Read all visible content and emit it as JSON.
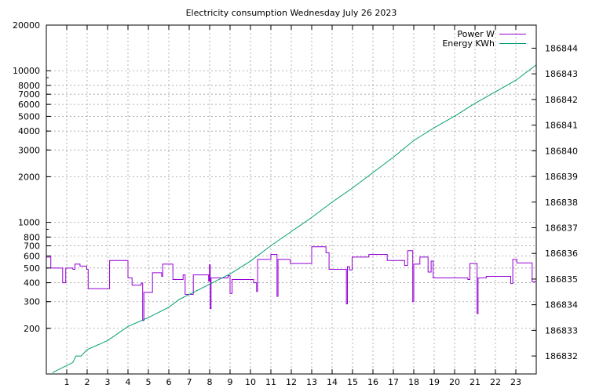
{
  "chart_data": {
    "type": "line",
    "title": "Electricity consumption Wednesday July 26 2023",
    "xlabel": "",
    "ylabel": "",
    "y2label": "",
    "grid": true,
    "legend_position": "top-right",
    "x_ticks": [
      "1",
      "2",
      "3",
      "4",
      "5",
      "6",
      "7",
      "8",
      "9",
      "10",
      "11",
      "12",
      "13",
      "14",
      "15",
      "16",
      "17",
      "18",
      "19",
      "20",
      "21",
      "22",
      "23"
    ],
    "y_axis": {
      "scale": "log",
      "range": [
        100,
        20000
      ],
      "ticks": [
        200,
        300,
        400,
        500,
        600,
        700,
        800,
        1000,
        2000,
        3000,
        4000,
        5000,
        6000,
        7000,
        8000,
        10000,
        20000
      ]
    },
    "y2_axis": {
      "scale": "linear",
      "range": [
        186831.3,
        186844.9
      ],
      "ticks": [
        186832,
        186833,
        186834,
        186835,
        186836,
        186837,
        186838,
        186839,
        186840,
        186841,
        186842,
        186843,
        186844
      ]
    },
    "xlim": [
      0,
      24
    ],
    "series": [
      {
        "name": "Power W",
        "color": "#9400d3",
        "axis": "y",
        "points": [
          [
            0.0,
            590
          ],
          [
            0.22,
            590
          ],
          [
            0.22,
            500
          ],
          [
            0.8,
            500
          ],
          [
            0.8,
            400
          ],
          [
            0.95,
            400
          ],
          [
            0.95,
            500
          ],
          [
            1.3,
            500
          ],
          [
            1.3,
            490
          ],
          [
            1.4,
            490
          ],
          [
            1.4,
            530
          ],
          [
            1.65,
            530
          ],
          [
            1.65,
            515
          ],
          [
            1.98,
            515
          ],
          [
            1.98,
            490
          ],
          [
            2.05,
            490
          ],
          [
            2.05,
            365
          ],
          [
            3.1,
            365
          ],
          [
            3.1,
            560
          ],
          [
            4.0,
            560
          ],
          [
            4.0,
            430
          ],
          [
            4.2,
            430
          ],
          [
            4.2,
            385
          ],
          [
            4.65,
            385
          ],
          [
            4.65,
            398
          ],
          [
            4.72,
            398
          ],
          [
            4.72,
            225
          ],
          [
            4.78,
            225
          ],
          [
            4.78,
            345
          ],
          [
            5.2,
            345
          ],
          [
            5.2,
            465
          ],
          [
            5.65,
            465
          ],
          [
            5.65,
            440
          ],
          [
            5.7,
            440
          ],
          [
            5.7,
            530
          ],
          [
            6.2,
            530
          ],
          [
            6.2,
            420
          ],
          [
            6.7,
            420
          ],
          [
            6.7,
            450
          ],
          [
            6.8,
            450
          ],
          [
            6.8,
            335
          ],
          [
            7.2,
            335
          ],
          [
            7.2,
            450
          ],
          [
            7.95,
            450
          ],
          [
            7.95,
            410
          ],
          [
            7.99,
            410
          ],
          [
            7.99,
            525
          ],
          [
            8.03,
            525
          ],
          [
            8.03,
            270
          ],
          [
            8.07,
            270
          ],
          [
            8.07,
            430
          ],
          [
            8.9,
            430
          ],
          [
            8.9,
            445
          ],
          [
            9.0,
            445
          ],
          [
            9.0,
            340
          ],
          [
            9.1,
            340
          ],
          [
            9.1,
            420
          ],
          [
            10.15,
            420
          ],
          [
            10.15,
            400
          ],
          [
            10.3,
            400
          ],
          [
            10.3,
            350
          ],
          [
            10.35,
            350
          ],
          [
            10.35,
            570
          ],
          [
            11.0,
            570
          ],
          [
            11.0,
            615
          ],
          [
            11.3,
            615
          ],
          [
            11.3,
            325
          ],
          [
            11.35,
            325
          ],
          [
            11.35,
            570
          ],
          [
            11.95,
            570
          ],
          [
            11.95,
            535
          ],
          [
            13.0,
            535
          ],
          [
            13.0,
            690
          ],
          [
            13.7,
            690
          ],
          [
            13.7,
            630
          ],
          [
            13.85,
            630
          ],
          [
            13.85,
            490
          ],
          [
            14.7,
            490
          ],
          [
            14.7,
            290
          ],
          [
            14.75,
            290
          ],
          [
            14.75,
            510
          ],
          [
            14.85,
            510
          ],
          [
            14.85,
            485
          ],
          [
            14.98,
            485
          ],
          [
            14.98,
            590
          ],
          [
            15.8,
            590
          ],
          [
            15.8,
            615
          ],
          [
            16.7,
            615
          ],
          [
            16.7,
            560
          ],
          [
            17.55,
            560
          ],
          [
            17.55,
            520
          ],
          [
            17.7,
            520
          ],
          [
            17.7,
            650
          ],
          [
            17.95,
            650
          ],
          [
            17.95,
            300
          ],
          [
            18.0,
            300
          ],
          [
            18.0,
            530
          ],
          [
            18.3,
            530
          ],
          [
            18.3,
            590
          ],
          [
            18.7,
            590
          ],
          [
            18.7,
            470
          ],
          [
            18.85,
            470
          ],
          [
            18.85,
            555
          ],
          [
            18.95,
            555
          ],
          [
            18.95,
            430
          ],
          [
            20.65,
            430
          ],
          [
            20.65,
            420
          ],
          [
            20.75,
            420
          ],
          [
            20.75,
            535
          ],
          [
            21.1,
            535
          ],
          [
            21.1,
            250
          ],
          [
            21.15,
            250
          ],
          [
            21.15,
            430
          ],
          [
            21.55,
            430
          ],
          [
            21.55,
            440
          ],
          [
            22.75,
            440
          ],
          [
            22.75,
            395
          ],
          [
            22.85,
            395
          ],
          [
            22.85,
            570
          ],
          [
            23.05,
            570
          ],
          [
            23.05,
            540
          ],
          [
            23.8,
            540
          ],
          [
            23.8,
            405
          ],
          [
            24.0,
            405
          ]
        ]
      },
      {
        "name": "Energy KWh",
        "color": "#009e73",
        "axis": "y2",
        "points": [
          [
            0.3,
            186831.35
          ],
          [
            1.3,
            186831.75
          ],
          [
            1.45,
            186832.0
          ],
          [
            1.7,
            186832.0
          ],
          [
            2.0,
            186832.25
          ],
          [
            3.0,
            186832.6
          ],
          [
            4.0,
            186833.15
          ],
          [
            5.0,
            186833.5
          ],
          [
            6.0,
            186833.9
          ],
          [
            6.5,
            186834.2
          ],
          [
            7.0,
            186834.4
          ],
          [
            8.0,
            186834.8
          ],
          [
            9.0,
            186835.2
          ],
          [
            10.0,
            186835.7
          ],
          [
            11.0,
            186836.3
          ],
          [
            12.0,
            186836.85
          ],
          [
            13.0,
            186837.4
          ],
          [
            14.0,
            186838.0
          ],
          [
            15.0,
            186838.55
          ],
          [
            16.0,
            186839.15
          ],
          [
            17.0,
            186839.75
          ],
          [
            18.0,
            186840.4
          ],
          [
            19.0,
            186840.9
          ],
          [
            20.0,
            186841.35
          ],
          [
            21.0,
            186841.85
          ],
          [
            22.0,
            186842.3
          ],
          [
            23.0,
            186842.75
          ],
          [
            24.0,
            186843.35
          ]
        ]
      }
    ]
  }
}
